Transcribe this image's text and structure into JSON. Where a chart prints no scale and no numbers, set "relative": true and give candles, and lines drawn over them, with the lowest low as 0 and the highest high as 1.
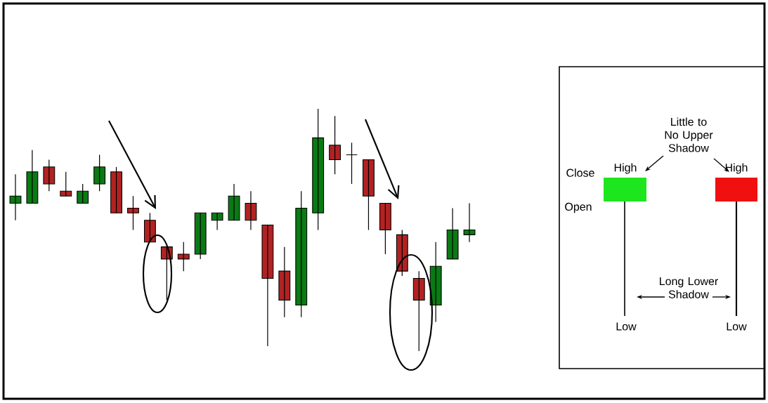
{
  "chart_data": [
    {
      "type": "candlestick",
      "relative": true,
      "categories": [
        null,
        null,
        null,
        null,
        null,
        null,
        null,
        null,
        null,
        null,
        null,
        null,
        null,
        null,
        null,
        null,
        null,
        null,
        null,
        null,
        null,
        null,
        null,
        null,
        null,
        null,
        null,
        null
      ],
      "ohlc": [
        [
          0.61,
          0.73,
          0.54,
          0.64
        ],
        [
          0.61,
          0.83,
          0.61,
          0.74
        ],
        [
          0.76,
          0.79,
          0.66,
          0.69
        ],
        [
          0.66,
          0.74,
          0.64,
          0.64
        ],
        [
          0.61,
          0.69,
          0.61,
          0.66
        ],
        [
          0.69,
          0.81,
          0.66,
          0.76
        ],
        [
          0.74,
          0.76,
          0.57,
          0.57
        ],
        [
          0.59,
          0.64,
          0.5,
          0.57
        ],
        [
          0.54,
          0.57,
          0.45,
          0.45
        ],
        [
          0.43,
          0.43,
          0.21,
          0.38
        ],
        [
          0.4,
          0.45,
          0.33,
          0.38
        ],
        [
          0.4,
          0.57,
          0.38,
          0.57
        ],
        [
          0.54,
          0.57,
          0.5,
          0.57
        ],
        [
          0.54,
          0.69,
          0.54,
          0.64
        ],
        [
          0.61,
          0.66,
          0.5,
          0.54
        ],
        [
          0.52,
          0.52,
          0.02,
          0.3
        ],
        [
          0.33,
          0.43,
          0.14,
          0.21
        ],
        [
          0.19,
          0.66,
          0.14,
          0.59
        ],
        [
          0.57,
          1.0,
          0.5,
          0.88
        ],
        [
          0.85,
          0.97,
          0.73,
          0.79
        ],
        [
          0.81,
          0.86,
          0.69,
          0.81
        ],
        [
          0.79,
          0.79,
          0.5,
          0.64
        ],
        [
          0.61,
          0.61,
          0.4,
          0.5
        ],
        [
          0.48,
          0.5,
          0.31,
          0.33
        ],
        [
          0.3,
          0.33,
          0.0,
          0.21
        ],
        [
          0.19,
          0.45,
          0.12,
          0.35
        ],
        [
          0.38,
          0.59,
          0.38,
          0.5
        ],
        [
          0.48,
          0.61,
          0.45,
          0.5
        ]
      ],
      "colors": [
        "#0a7a14",
        "#0a7a14",
        "#b22222",
        "#b22222",
        "#0a7a14",
        "#0a7a14",
        "#b22222",
        "#b22222",
        "#b22222",
        "#b22222",
        "#b22222",
        "#0a7a14",
        "#0a7a14",
        "#0a7a14",
        "#b22222",
        "#b22222",
        "#b22222",
        "#0a7a14",
        "#0a7a14",
        "#b22222",
        "#000000",
        "#b22222",
        "#b22222",
        "#b22222",
        "#b22222",
        "#0a7a14",
        "#0a7a14",
        "#0a7a14"
      ]
    },
    {
      "type": "other",
      "annotations": [
        "Little to No Upper Shadow",
        "High",
        "High",
        "Close",
        "Open",
        "Long Lower Shadow",
        "Low",
        "Low"
      ]
    }
  ]
}
